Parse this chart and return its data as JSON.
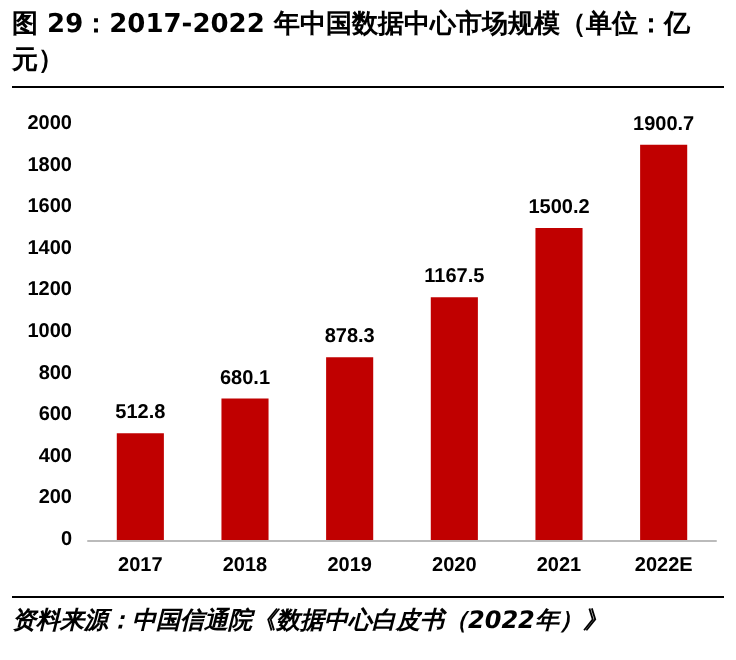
{
  "chart_data": {
    "type": "bar",
    "title": "图 29：2017-2022 年中国数据中心市场规模（单位：亿元）",
    "categories": [
      "2017",
      "2018",
      "2019",
      "2020",
      "2021",
      "2022E"
    ],
    "values": [
      512.8,
      680.1,
      878.3,
      1167.5,
      1500.2,
      1900.7
    ],
    "color": "#c00000",
    "ylim": [
      0,
      2000
    ],
    "yticks": [
      0,
      200,
      400,
      600,
      800,
      1000,
      1200,
      1400,
      1600,
      1800,
      2000
    ],
    "grid": false,
    "data_labels": true,
    "annotations": [
      "资料来源：中国信通院《数据中心白皮书（2022年）》"
    ]
  }
}
